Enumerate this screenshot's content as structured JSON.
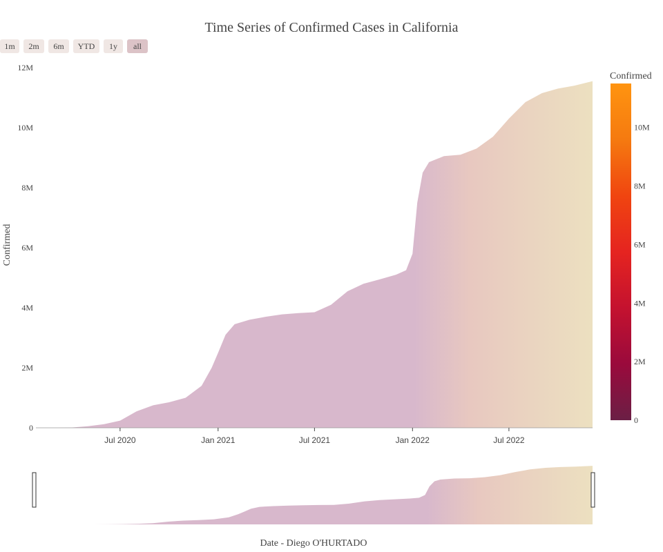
{
  "colors": {
    "fill_start": "#d8b8cc",
    "fill_mid": "#e8c8c0",
    "fill_end": "#ece0c0",
    "colorbar_stops": [
      "#6b1f45",
      "#9a0a3c",
      "#c4122f",
      "#e52420",
      "#f04510",
      "#f57a10",
      "#ff9410"
    ],
    "button_bg": "#f0e7e4",
    "button_active_bg": "#dcc3c7"
  },
  "range_selector": {
    "buttons": [
      "1m",
      "2m",
      "6m",
      "YTD",
      "1y",
      "all"
    ],
    "active": "all"
  },
  "colorbar": {
    "title": "Confirmed",
    "ticks": [
      "0",
      "2M",
      "4M",
      "6M",
      "8M",
      "10M"
    ],
    "tick_values": [
      0,
      2,
      4,
      6,
      8,
      10
    ],
    "range": [
      0,
      11.5
    ]
  },
  "chart_data": {
    "type": "area",
    "title": "Time Series of Confirmed Cases in California",
    "xlabel": "Date - Diego O'HURTADO",
    "ylabel": "Confirmed",
    "units": "millions",
    "ylim": [
      0,
      12
    ],
    "y_ticks": [
      "0",
      "2M",
      "4M",
      "6M",
      "8M",
      "10M",
      "12M"
    ],
    "y_tick_values": [
      0,
      2,
      4,
      6,
      8,
      10,
      12
    ],
    "x_range": [
      "2020-01-25",
      "2022-12-05"
    ],
    "x_ticks": [
      {
        "date": "2020-07-01",
        "label": "Jul 2020"
      },
      {
        "date": "2021-01-01",
        "label": "Jan 2021"
      },
      {
        "date": "2021-07-01",
        "label": "Jul 2021"
      },
      {
        "date": "2022-01-01",
        "label": "Jan 2022"
      },
      {
        "date": "2022-07-01",
        "label": "Jul 2022"
      }
    ],
    "series": [
      {
        "x": [
          "2020-01-25",
          "2020-03-01",
          "2020-04-01",
          "2020-05-01",
          "2020-06-01",
          "2020-07-01",
          "2020-08-01",
          "2020-09-01",
          "2020-10-01",
          "2020-11-01",
          "2020-12-01",
          "2020-12-20",
          "2021-01-01",
          "2021-01-15",
          "2021-02-01",
          "2021-03-01",
          "2021-04-01",
          "2021-05-01",
          "2021-06-01",
          "2021-07-01",
          "2021-08-01",
          "2021-09-01",
          "2021-10-01",
          "2021-11-01",
          "2021-12-01",
          "2021-12-20",
          "2022-01-01",
          "2022-01-10",
          "2022-01-20",
          "2022-02-01",
          "2022-03-01",
          "2022-04-01",
          "2022-05-01",
          "2022-06-01",
          "2022-07-01",
          "2022-08-01",
          "2022-09-01",
          "2022-10-01",
          "2022-11-01",
          "2022-12-05"
        ],
        "y": [
          0.0,
          0.001,
          0.01,
          0.05,
          0.12,
          0.24,
          0.55,
          0.75,
          0.85,
          1.0,
          1.4,
          2.0,
          2.5,
          3.1,
          3.45,
          3.6,
          3.7,
          3.78,
          3.82,
          3.85,
          4.1,
          4.55,
          4.8,
          4.95,
          5.1,
          5.25,
          5.8,
          7.5,
          8.5,
          8.85,
          9.05,
          9.1,
          9.3,
          9.7,
          10.3,
          10.85,
          11.15,
          11.3,
          11.4,
          11.55
        ]
      }
    ]
  }
}
